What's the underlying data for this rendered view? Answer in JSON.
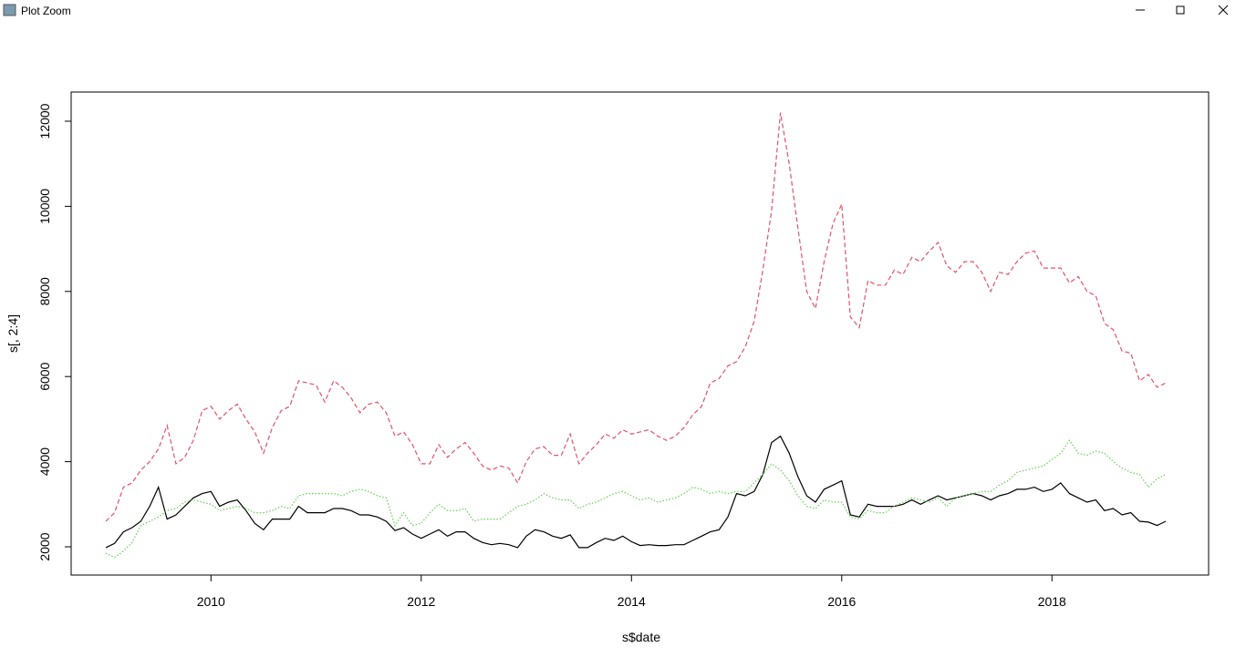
{
  "window": {
    "title": "Plot Zoom"
  },
  "chart_data": {
    "type": "line",
    "x_label": "s$date",
    "y_label": "s[, 2:4]",
    "x": [
      2009,
      2009.083,
      2009.167,
      2009.25,
      2009.333,
      2009.417,
      2009.5,
      2009.583,
      2009.667,
      2009.75,
      2009.833,
      2009.917,
      2010,
      2010.083,
      2010.167,
      2010.25,
      2010.333,
      2010.417,
      2010.5,
      2010.583,
      2010.667,
      2010.75,
      2010.833,
      2010.917,
      2011,
      2011.083,
      2011.167,
      2011.25,
      2011.333,
      2011.417,
      2011.5,
      2011.583,
      2011.667,
      2011.75,
      2011.833,
      2011.917,
      2012,
      2012.083,
      2012.167,
      2012.25,
      2012.333,
      2012.417,
      2012.5,
      2012.583,
      2012.667,
      2012.75,
      2012.833,
      2012.917,
      2013,
      2013.083,
      2013.167,
      2013.25,
      2013.333,
      2013.417,
      2013.5,
      2013.583,
      2013.667,
      2013.75,
      2013.833,
      2013.917,
      2014,
      2014.083,
      2014.167,
      2014.25,
      2014.333,
      2014.417,
      2014.5,
      2014.583,
      2014.667,
      2014.75,
      2014.833,
      2014.917,
      2015,
      2015.083,
      2015.167,
      2015.25,
      2015.333,
      2015.417,
      2015.5,
      2015.583,
      2015.667,
      2015.75,
      2015.833,
      2015.917,
      2016,
      2016.083,
      2016.167,
      2016.25,
      2016.333,
      2016.417,
      2016.5,
      2016.583,
      2016.667,
      2016.75,
      2016.833,
      2016.917,
      2017,
      2017.083,
      2017.167,
      2017.25,
      2017.333,
      2017.417,
      2017.5,
      2017.583,
      2017.667,
      2017.75,
      2017.833,
      2017.917,
      2018,
      2018.083,
      2018.167,
      2018.25,
      2018.333,
      2018.417,
      2018.5,
      2018.583,
      2018.667,
      2018.75,
      2018.833,
      2018.917,
      2019,
      2019.083
    ],
    "series": [
      {
        "color": "#000000",
        "dash": "solid",
        "values": [
          1980,
          2080,
          2350,
          2450,
          2600,
          2950,
          3400,
          2650,
          2750,
          2950,
          3150,
          3250,
          3300,
          2950,
          3050,
          3100,
          2850,
          2550,
          2400,
          2650,
          2650,
          2650,
          2950,
          2800,
          2800,
          2800,
          2900,
          2900,
          2850,
          2750,
          2750,
          2700,
          2600,
          2380,
          2450,
          2300,
          2200,
          2300,
          2400,
          2250,
          2350,
          2350,
          2200,
          2100,
          2050,
          2080,
          2050,
          1980,
          2250,
          2400,
          2350,
          2250,
          2200,
          2280,
          1980,
          1980,
          2100,
          2200,
          2150,
          2250,
          2120,
          2030,
          2050,
          2030,
          2030,
          2050,
          2050,
          2150,
          2250,
          2350,
          2400,
          2700,
          3250,
          3200,
          3300,
          3700,
          4450,
          4600,
          4200,
          3650,
          3200,
          3050,
          3350,
          3450,
          3550,
          2750,
          2700,
          3000,
          2950,
          2950,
          2950,
          3000,
          3100,
          3000,
          3100,
          3200,
          3100,
          3150,
          3200,
          3250,
          3200,
          3100,
          3200,
          3250,
          3350,
          3350,
          3400,
          3300,
          3350,
          3500,
          3250,
          3150,
          3050,
          3100,
          2850,
          2900,
          2750,
          2800,
          2600,
          2580,
          2500,
          2600
        ]
      },
      {
        "color": "#DF536B",
        "dash": "dashed",
        "values": [
          2600,
          2800,
          3400,
          3500,
          3800,
          4000,
          4300,
          4850,
          3950,
          4100,
          4500,
          5200,
          5300,
          5000,
          5200,
          5350,
          5000,
          4700,
          4200,
          4800,
          5200,
          5300,
          5900,
          5850,
          5800,
          5400,
          5900,
          5750,
          5500,
          5150,
          5350,
          5400,
          5150,
          4600,
          4700,
          4400,
          3950,
          3950,
          4400,
          4100,
          4300,
          4450,
          4200,
          3900,
          3800,
          3900,
          3850,
          3500,
          4000,
          4300,
          4350,
          4150,
          4150,
          4650,
          3950,
          4200,
          4400,
          4650,
          4550,
          4750,
          4650,
          4700,
          4750,
          4600,
          4500,
          4600,
          4800,
          5100,
          5300,
          5850,
          5950,
          6250,
          6350,
          6700,
          7300,
          8500,
          9900,
          12200,
          11000,
          9500,
          8000,
          7600,
          8700,
          9600,
          10050,
          7400,
          7150,
          8250,
          8150,
          8150,
          8500,
          8400,
          8800,
          8700,
          8950,
          9150,
          8600,
          8450,
          8700,
          8700,
          8450,
          8000,
          8450,
          8400,
          8700,
          8900,
          8950,
          8550,
          8550,
          8550,
          8200,
          8350,
          8000,
          7900,
          7250,
          7100,
          6600,
          6550,
          5900,
          6050,
          5750,
          5850
        ]
      },
      {
        "color": "#61D04F",
        "dash": "dotted",
        "values": [
          1850,
          1750,
          1900,
          2100,
          2500,
          2600,
          2700,
          2850,
          2900,
          3050,
          3100,
          3050,
          3000,
          2850,
          2900,
          2950,
          2900,
          2800,
          2800,
          2850,
          2950,
          2900,
          3200,
          3250,
          3250,
          3250,
          3250,
          3200,
          3300,
          3350,
          3300,
          3200,
          3150,
          2500,
          2800,
          2500,
          2550,
          2800,
          3000,
          2850,
          2850,
          2900,
          2600,
          2650,
          2650,
          2650,
          2800,
          2950,
          3000,
          3100,
          3250,
          3150,
          3100,
          3100,
          2900,
          3000,
          3050,
          3150,
          3250,
          3300,
          3200,
          3100,
          3150,
          3050,
          3100,
          3150,
          3250,
          3400,
          3350,
          3250,
          3300,
          3250,
          3300,
          3300,
          3500,
          3700,
          3950,
          3800,
          3550,
          3200,
          2950,
          2900,
          3100,
          3050,
          3050,
          2700,
          2650,
          2850,
          2800,
          2800,
          2950,
          3050,
          3150,
          3100,
          3050,
          3150,
          2950,
          3150,
          3200,
          3250,
          3300,
          3300,
          3450,
          3550,
          3750,
          3800,
          3850,
          3900,
          4050,
          4200,
          4500,
          4200,
          4150,
          4250,
          4200,
          4000,
          3850,
          3750,
          3700,
          3400,
          3600,
          3700
        ]
      }
    ],
    "xlim": [
      2008.67,
      2019.49
    ],
    "xticks": [
      2010,
      2012,
      2014,
      2016,
      2018
    ],
    "ylim": [
      1336,
      12685
    ],
    "yticks": [
      2000,
      4000,
      6000,
      8000,
      10000,
      12000
    ]
  }
}
